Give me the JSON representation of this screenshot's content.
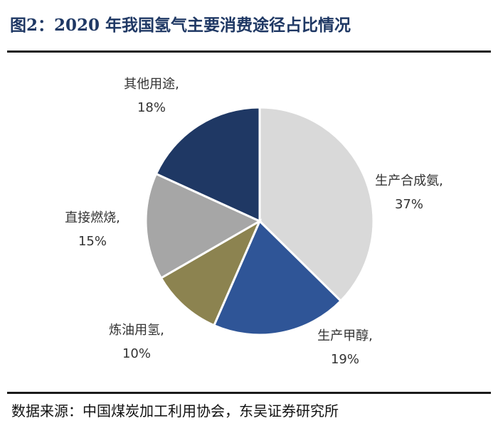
{
  "title": "图2：2020 年我国氢气主要消费途径占比情况",
  "source": "数据来源：中国煤炭加工利用协会，东吴证券研究所",
  "chart_data": {
    "type": "pie",
    "title": "图2：2020 年我国氢气主要消费途径占比情况",
    "slices": [
      {
        "label": "生产合成氨,",
        "value": 37,
        "pct": "37%",
        "color": "#d9d9d9"
      },
      {
        "label": "生产甲醇,",
        "value": 19,
        "pct": "19%",
        "color": "#2f5597"
      },
      {
        "label": "炼油用氢,",
        "value": 10,
        "pct": "10%",
        "color": "#8c8350"
      },
      {
        "label": "直接燃烧,",
        "value": 15,
        "pct": "15%",
        "color": "#a6a6a6"
      },
      {
        "label": "其他用途,",
        "value": 18,
        "pct": "18%",
        "color": "#1f3864"
      }
    ],
    "start_angle_deg": 0,
    "direction": "clockwise",
    "legend": "none"
  }
}
